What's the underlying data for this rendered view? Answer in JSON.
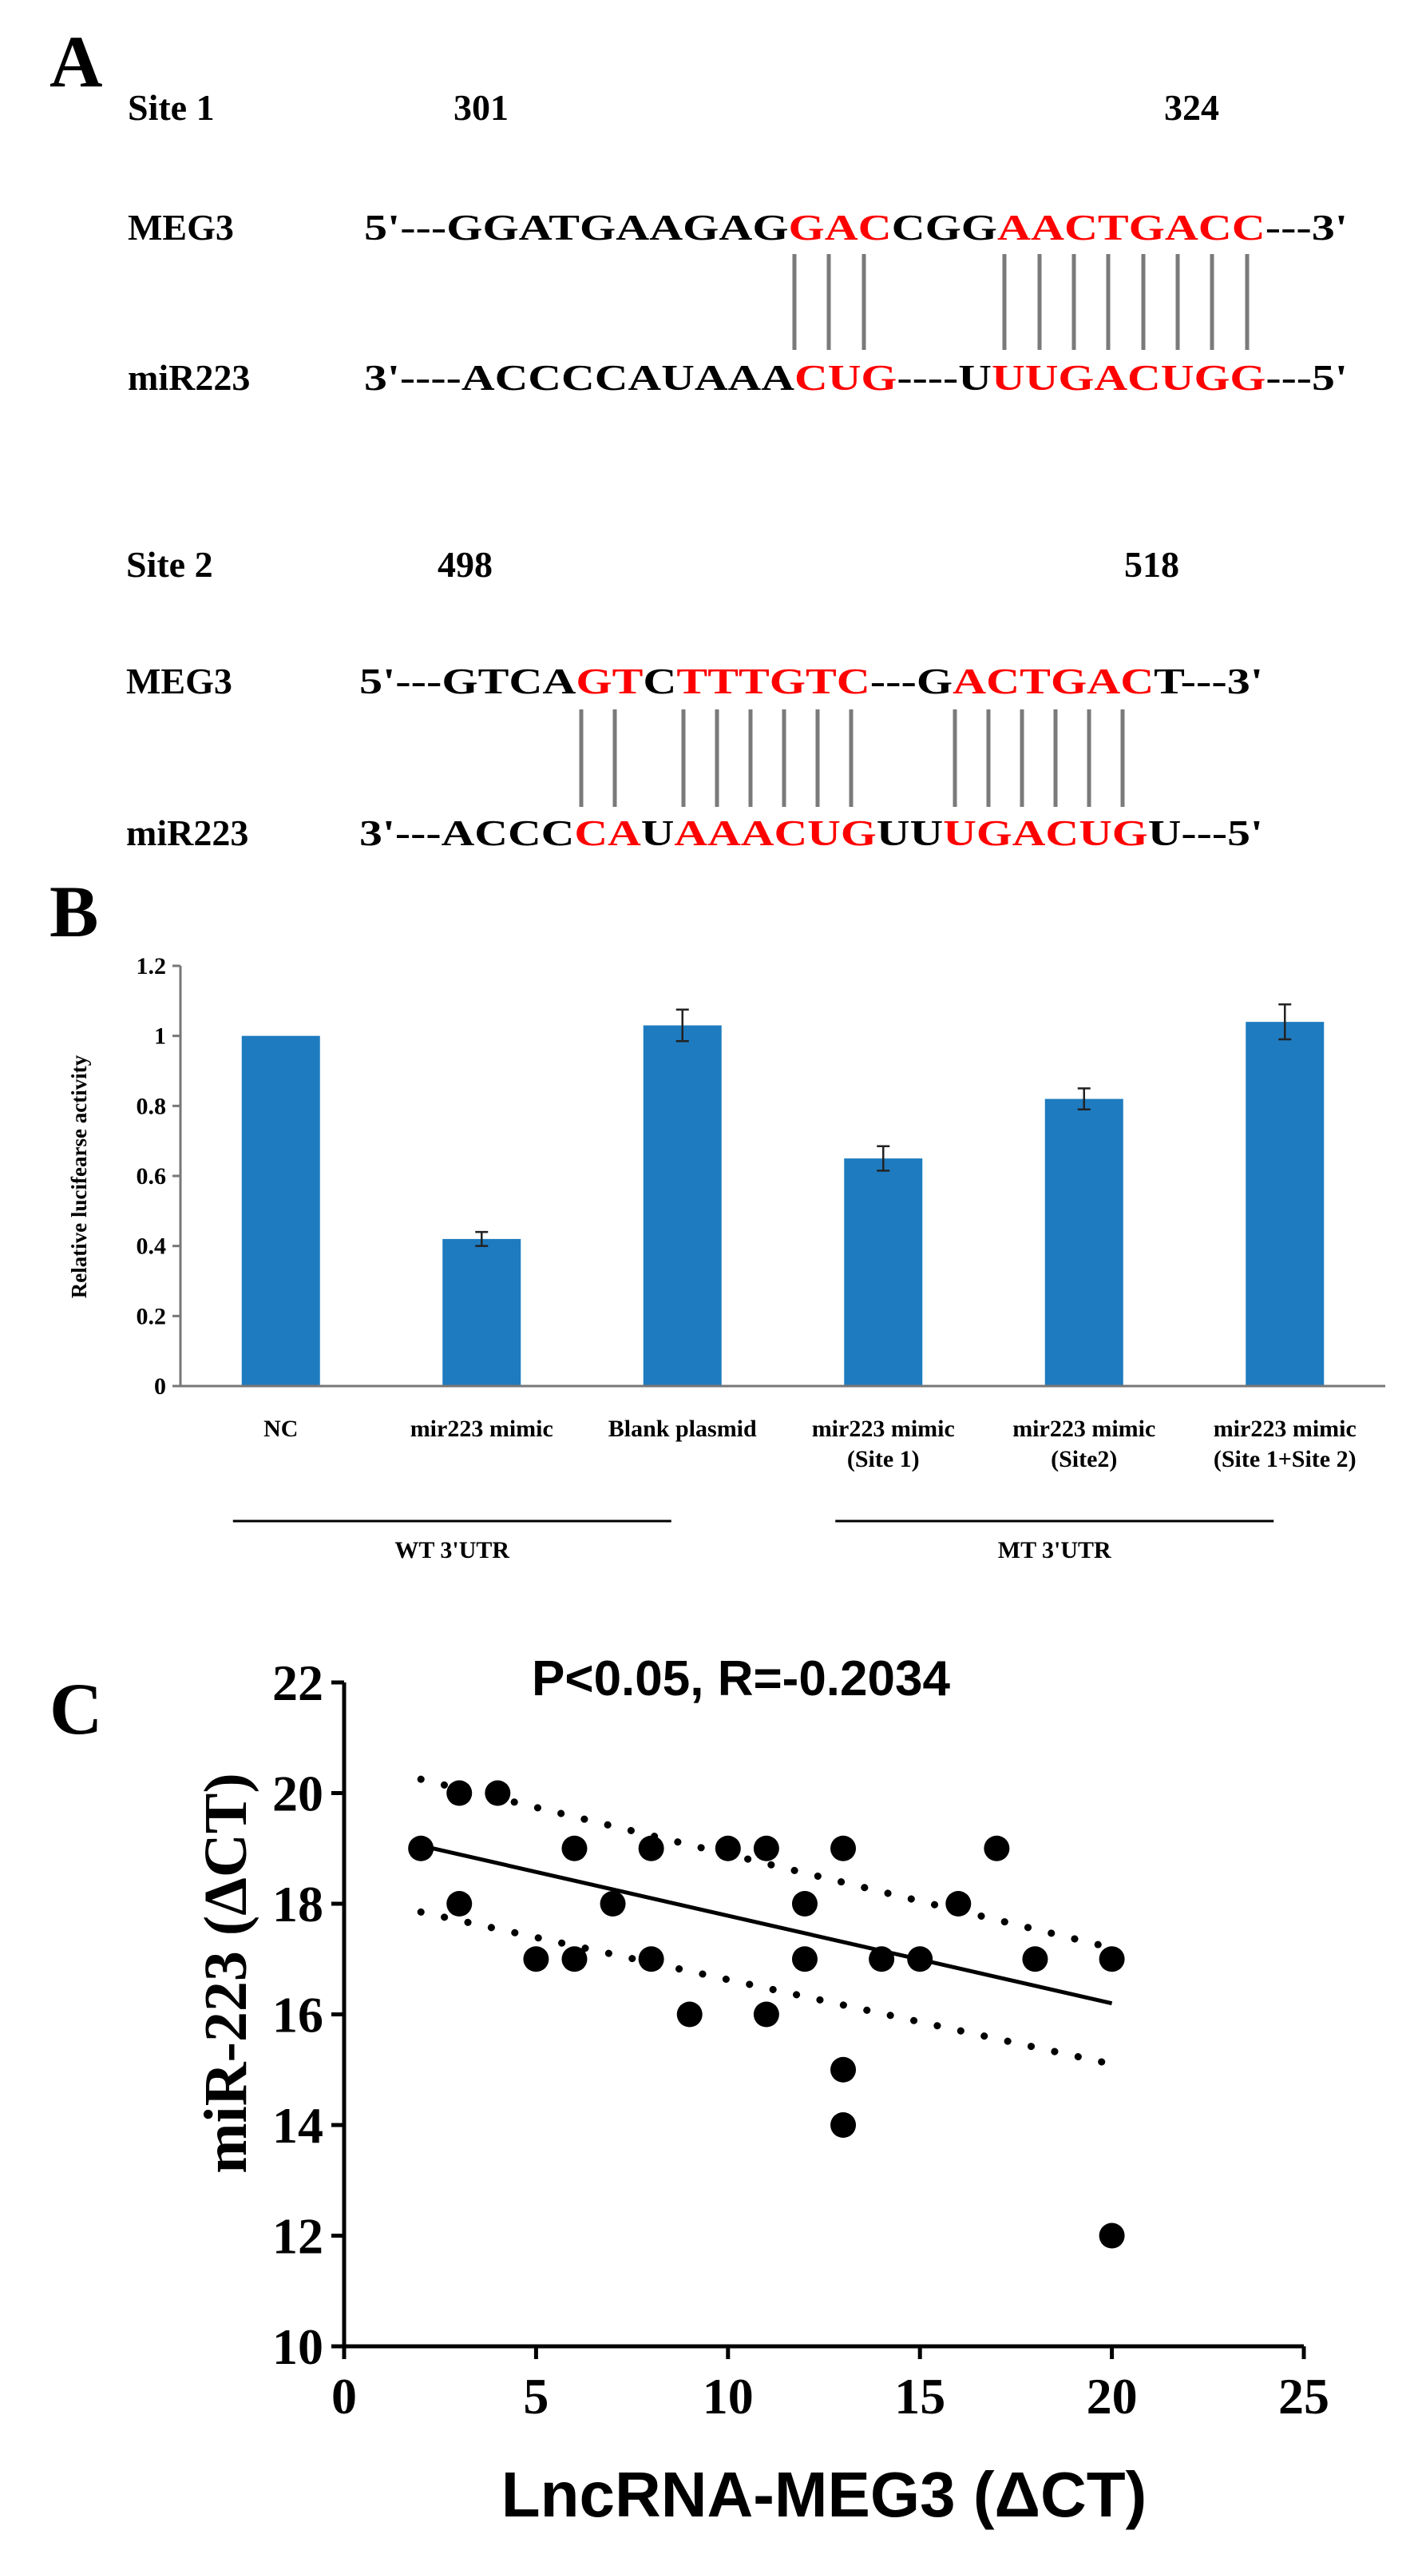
{
  "panels": [
    {
      "label": "A"
    },
    {
      "label": "B"
    },
    {
      "label": "C"
    }
  ],
  "colors": {
    "match": "#ff0000",
    "bar": "#1e7bbf",
    "text": "#000000"
  },
  "sites": [
    {
      "name": "Site 1",
      "start": "301",
      "end": "324",
      "rows": [
        {
          "label": "MEG3",
          "segments": [
            {
              "t": "5'---GGATGAAGAG",
              "r": false
            },
            {
              "t": "GAC",
              "r": true
            },
            {
              "t": "CGG",
              "r": false
            },
            {
              "t": "AACTGACC",
              "r": true
            },
            {
              "t": "---3'",
              "r": false
            }
          ]
        },
        {
          "label": "miR223",
          "segments": [
            {
              "t": "3'----ACCCCAUAAA",
              "r": false
            },
            {
              "t": "CUG",
              "r": true
            },
            {
              "t": "----U",
              "r": false
            },
            {
              "t": "UUGACUGG",
              "r": true
            },
            {
              "t": "---5'",
              "r": false
            }
          ]
        }
      ]
    },
    {
      "name": "Site 2",
      "start": "498",
      "end": "518",
      "rows": [
        {
          "label": "MEG3",
          "segments": [
            {
              "t": "5'---GTCA",
              "r": false
            },
            {
              "t": "GT",
              "r": true
            },
            {
              "t": "C",
              "r": false
            },
            {
              "t": "TTTGTC",
              "r": true
            },
            {
              "t": "---G",
              "r": false
            },
            {
              "t": "ACTGAC",
              "r": true
            },
            {
              "t": "T---3'",
              "r": false
            }
          ]
        },
        {
          "label": "miR223",
          "segments": [
            {
              "t": "3'---ACCC",
              "r": false
            },
            {
              "t": "CA",
              "r": true
            },
            {
              "t": "U",
              "r": false
            },
            {
              "t": "AAACUG",
              "r": true
            },
            {
              "t": "UU",
              "r": false
            },
            {
              "t": "UGACUG",
              "r": true
            },
            {
              "t": "U---5'",
              "r": false
            }
          ]
        }
      ]
    }
  ],
  "chart_data": [
    {
      "type": "bar",
      "ylabel": "Relative lucifearse activity",
      "categories": [
        "NC",
        "mir223 mimic",
        "Blank plasmid",
        "mir223 mimic\n(Site 1)",
        "mir223 mimic\n(Site2)",
        "mir223 mimic\n(Site 1+Site 2)"
      ],
      "values": [
        1.0,
        0.42,
        1.03,
        0.65,
        0.82,
        1.04
      ],
      "errors": [
        0.0,
        0.02,
        0.045,
        0.035,
        0.03,
        0.05
      ],
      "ylim": [
        0,
        1.2
      ],
      "yticks": [
        "0",
        "0.2",
        "0.4",
        "0.6",
        "0.8",
        "1",
        "1.2"
      ],
      "groups": [
        {
          "label": "WT 3'UTR",
          "categories": [
            0,
            2
          ]
        },
        {
          "label": "MT 3'UTR",
          "categories": [
            3,
            5
          ]
        }
      ]
    },
    {
      "type": "scatter",
      "title": "P<0.05,  R=-0.2034",
      "xlabel": "LncRNA-MEG3 (ΔCT)",
      "ylabel": "miR-223 (ΔCT)",
      "xlim": [
        0,
        25
      ],
      "ylim": [
        10,
        22
      ],
      "xticks": [
        "0",
        "5",
        "10",
        "15",
        "20",
        "25"
      ],
      "yticks": [
        "10",
        "12",
        "14",
        "16",
        "18",
        "20",
        "22"
      ],
      "points": [
        [
          2,
          19
        ],
        [
          3,
          20
        ],
        [
          3,
          18
        ],
        [
          4,
          20
        ],
        [
          5,
          17
        ],
        [
          6,
          19
        ],
        [
          6,
          17
        ],
        [
          7,
          18
        ],
        [
          8,
          19
        ],
        [
          8,
          17
        ],
        [
          9,
          16
        ],
        [
          10,
          19
        ],
        [
          11,
          19
        ],
        [
          11,
          16
        ],
        [
          12,
          18
        ],
        [
          12,
          17
        ],
        [
          13,
          19
        ],
        [
          13,
          15
        ],
        [
          13,
          14
        ],
        [
          14,
          17
        ],
        [
          15,
          17
        ],
        [
          16,
          18
        ],
        [
          17,
          19
        ],
        [
          18,
          17
        ],
        [
          20,
          17
        ],
        [
          20,
          12
        ]
      ],
      "fit": {
        "x": [
          2,
          20
        ],
        "y": [
          19.05,
          16.2
        ]
      },
      "ci_upper": {
        "x": [
          2,
          20
        ],
        "y": [
          20.25,
          17.2
        ]
      },
      "ci_lower": {
        "x": [
          2,
          20
        ],
        "y": [
          17.85,
          15.1
        ]
      }
    }
  ]
}
